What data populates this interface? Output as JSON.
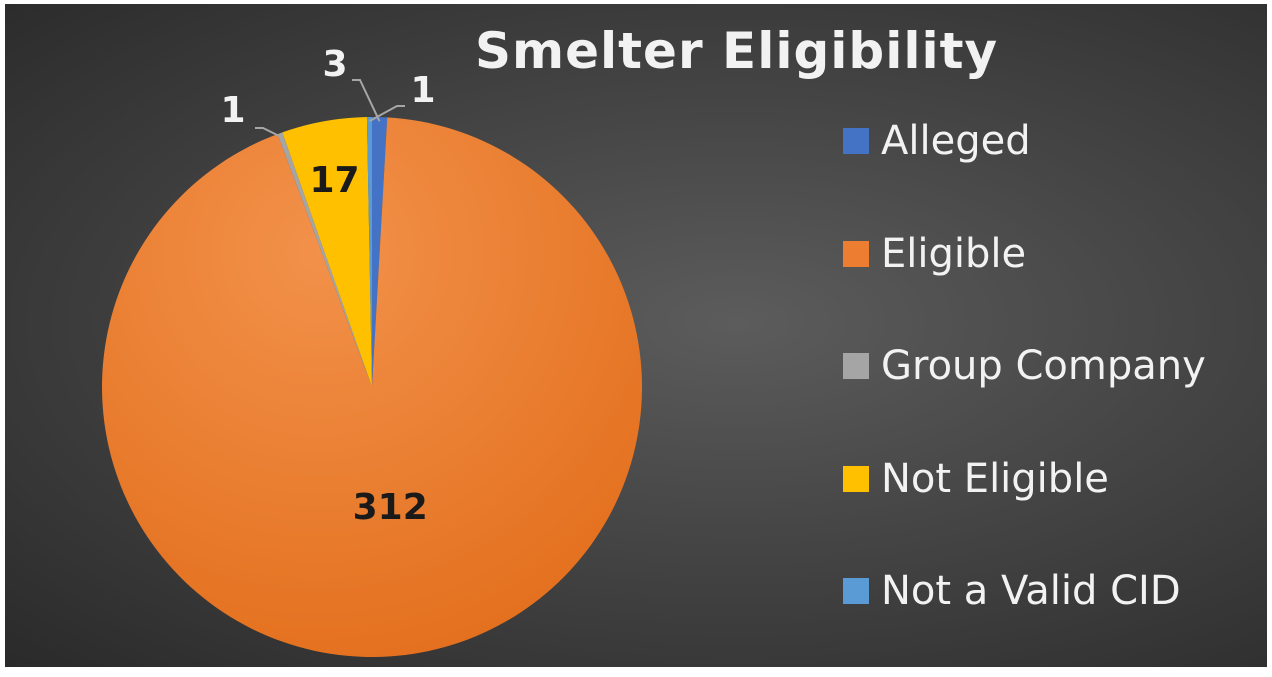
{
  "chart_data": {
    "type": "pie",
    "title": "Smelter Eligibility",
    "categories": [
      "Alleged",
      "Eligible",
      "Group Company",
      "Not Eligible",
      "Not a Valid CID"
    ],
    "values": [
      3,
      312,
      1,
      17,
      1
    ],
    "data_labels": [
      "3",
      "312",
      "1",
      "17",
      "1"
    ],
    "colors": [
      "#4472c4",
      "#ed7d31",
      "#a5a5a5",
      "#ffc000",
      "#5b9bd5"
    ],
    "start_angle_deg": 0,
    "direction": "clockwise",
    "legend_position": "right"
  }
}
